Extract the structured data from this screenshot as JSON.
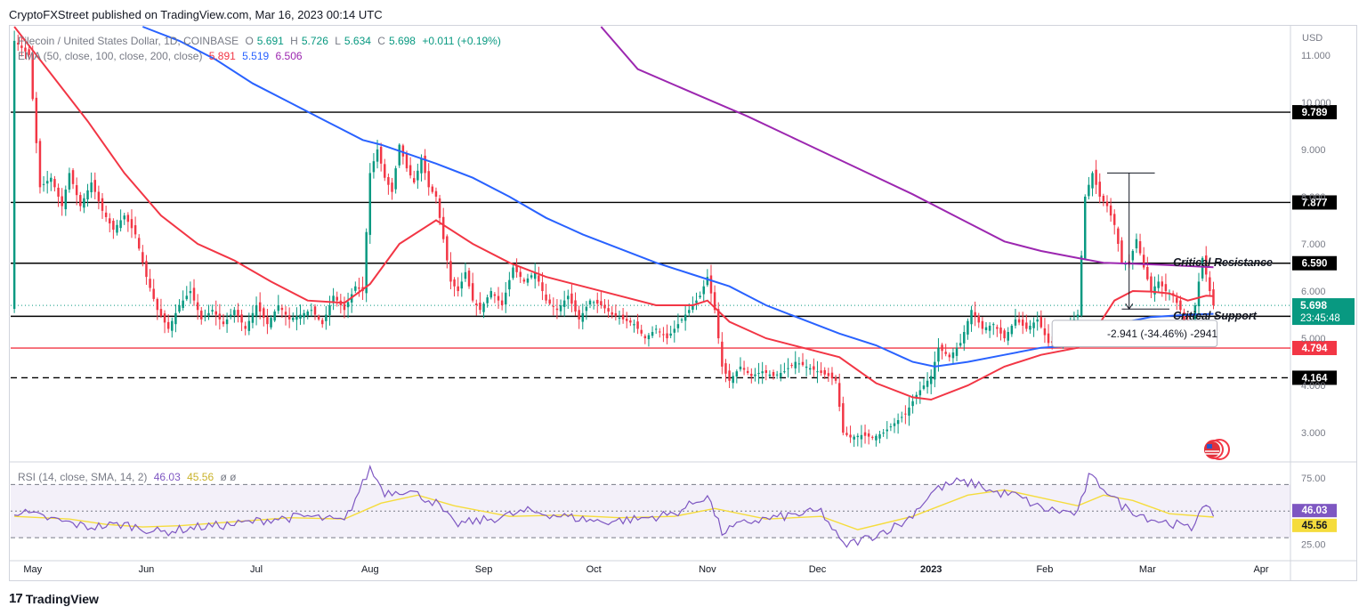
{
  "header": {
    "publisher": "CryptoFXStreet published on TradingView.com, Mar 16, 2023 00:14 UTC"
  },
  "legend": {
    "symbol": "Filecoin / United States Dollar, 1D, COINBASE",
    "o_label": "O",
    "o": "5.691",
    "h_label": "H",
    "h": "5.726",
    "l_label": "L",
    "l": "5.634",
    "c_label": "C",
    "c": "5.698",
    "change": "+0.011 (+0.19%)",
    "ema_label": "EMA (50, close, 100, close, 200, close)",
    "ema50": "5.891",
    "ema100": "5.519",
    "ema200": "6.506"
  },
  "rsi_legend": {
    "label": "RSI (14, close, SMA, 14, 2)",
    "rsi": "46.03",
    "sma": "45.56",
    "extra": "ø ø"
  },
  "footer": {
    "brand": "TradingView"
  },
  "colors": {
    "ema50": "#f23645",
    "ema100": "#2962ff",
    "ema200": "#9c27b0",
    "up": "#089981",
    "down": "#f23645",
    "rsi": "#7e57c2",
    "rsi_sma": "#f5dc3c"
  },
  "chart_data": {
    "type": "candlestick",
    "currency_label": "USD",
    "y_ticks": [
      "11.000",
      "10.000",
      "9.000",
      "8.000",
      "7.000",
      "6.000",
      "5.000",
      "4.000",
      "3.000"
    ],
    "y_tick_values": [
      11,
      10,
      9,
      8,
      7,
      6,
      5,
      4,
      3
    ],
    "ylim": [
      2.4,
      11.6
    ],
    "x_ticks": [
      {
        "label": "May",
        "t": 0.0
      },
      {
        "label": "Jun",
        "t": 31
      },
      {
        "label": "Jul",
        "t": 61
      },
      {
        "label": "Aug",
        "t": 92
      },
      {
        "label": "Sep",
        "t": 123
      },
      {
        "label": "Oct",
        "t": 153
      },
      {
        "label": "Nov",
        "t": 184
      },
      {
        "label": "Dec",
        "t": 214
      },
      {
        "label": "2023",
        "t": 245,
        "bold": true
      },
      {
        "label": "Feb",
        "t": 276
      },
      {
        "label": "Mar",
        "t": 304
      },
      {
        "label": "Apr",
        "t": 335
      }
    ],
    "horizontal_levels": [
      {
        "value": 9.789,
        "label": "9.789",
        "style": "solid",
        "color": "#000000"
      },
      {
        "value": 7.877,
        "label": "7.877",
        "style": "solid",
        "color": "#000000"
      },
      {
        "value": 6.59,
        "label": "6.590",
        "style": "solid",
        "color": "#000000"
      },
      {
        "value": 5.466,
        "label": "5.466",
        "style": "solid",
        "color": "#000000"
      },
      {
        "value": 4.794,
        "label": "4.794",
        "style": "solid",
        "color": "#f23645"
      },
      {
        "value": 4.164,
        "label": "4.164",
        "style": "dashed",
        "color": "#000000"
      }
    ],
    "current_price": {
      "value": 5.698,
      "label": "5.698",
      "countdown": "23:45:48"
    },
    "annotations": [
      {
        "text": "Critical Resistance",
        "t": 311,
        "y": 6.6
      },
      {
        "text": "Critical Support",
        "t": 311,
        "y": 5.47
      },
      {
        "text": "-2.941 (-34.46%) -2941",
        "t": 293,
        "y": 5.1
      }
    ],
    "price_path": [
      [
        -5,
        11.3
      ],
      [
        -1,
        11.0
      ],
      [
        2,
        8.2
      ],
      [
        5,
        8.4
      ],
      [
        8,
        7.8
      ],
      [
        10,
        8.5
      ],
      [
        13,
        7.8
      ],
      [
        16,
        8.3
      ],
      [
        19,
        7.7
      ],
      [
        22,
        7.3
      ],
      [
        25,
        7.6
      ],
      [
        28,
        7.2
      ],
      [
        31,
        6.3
      ],
      [
        34,
        5.6
      ],
      [
        37,
        5.2
      ],
      [
        40,
        5.7
      ],
      [
        43,
        6.0
      ],
      [
        46,
        5.4
      ],
      [
        49,
        5.6
      ],
      [
        52,
        5.3
      ],
      [
        55,
        5.6
      ],
      [
        58,
        5.2
      ],
      [
        61,
        5.7
      ],
      [
        64,
        5.3
      ],
      [
        67,
        5.7
      ],
      [
        70,
        5.4
      ],
      [
        73,
        5.5
      ],
      [
        76,
        5.6
      ],
      [
        79,
        5.3
      ],
      [
        82,
        5.9
      ],
      [
        85,
        5.6
      ],
      [
        88,
        6.1
      ],
      [
        90,
        6.0
      ],
      [
        92,
        8.5
      ],
      [
        94,
        9.0
      ],
      [
        96,
        8.4
      ],
      [
        98,
        8.1
      ],
      [
        100,
        9.1
      ],
      [
        102,
        8.6
      ],
      [
        104,
        8.3
      ],
      [
        106,
        8.8
      ],
      [
        108,
        8.2
      ],
      [
        110,
        8.0
      ],
      [
        112,
        7.1
      ],
      [
        114,
        6.2
      ],
      [
        116,
        6.0
      ],
      [
        118,
        6.4
      ],
      [
        120,
        5.8
      ],
      [
        122,
        5.6
      ],
      [
        125,
        6.0
      ],
      [
        128,
        5.7
      ],
      [
        131,
        6.5
      ],
      [
        134,
        6.2
      ],
      [
        137,
        6.4
      ],
      [
        140,
        5.8
      ],
      [
        143,
        5.6
      ],
      [
        146,
        5.9
      ],
      [
        149,
        5.4
      ],
      [
        152,
        5.8
      ],
      [
        155,
        5.7
      ],
      [
        158,
        5.5
      ],
      [
        161,
        5.4
      ],
      [
        164,
        5.3
      ],
      [
        167,
        5.0
      ],
      [
        170,
        5.2
      ],
      [
        173,
        5.0
      ],
      [
        176,
        5.3
      ],
      [
        179,
        5.6
      ],
      [
        182,
        5.9
      ],
      [
        184,
        6.3
      ],
      [
        186,
        5.6
      ],
      [
        188,
        4.4
      ],
      [
        190,
        4.1
      ],
      [
        193,
        4.4
      ],
      [
        196,
        4.2
      ],
      [
        199,
        4.3
      ],
      [
        202,
        4.2
      ],
      [
        205,
        4.3
      ],
      [
        208,
        4.5
      ],
      [
        211,
        4.4
      ],
      [
        214,
        4.3
      ],
      [
        217,
        4.2
      ],
      [
        219,
        4.1
      ],
      [
        221,
        3.0
      ],
      [
        223,
        2.9
      ],
      [
        226,
        2.95
      ],
      [
        229,
        2.9
      ],
      [
        232,
        3.0
      ],
      [
        235,
        3.2
      ],
      [
        238,
        3.4
      ],
      [
        241,
        3.8
      ],
      [
        243,
        4.0
      ],
      [
        245,
        4.2
      ],
      [
        247,
        4.8
      ],
      [
        250,
        4.6
      ],
      [
        253,
        4.9
      ],
      [
        256,
        5.6
      ],
      [
        259,
        5.2
      ],
      [
        262,
        5.3
      ],
      [
        265,
        5.0
      ],
      [
        268,
        5.4
      ],
      [
        271,
        5.2
      ],
      [
        274,
        5.4
      ],
      [
        277,
        4.9
      ],
      [
        280,
        4.9
      ],
      [
        283,
        5.3
      ],
      [
        285,
        5.5
      ],
      [
        287,
        8.0
      ],
      [
        289,
        8.5
      ],
      [
        291,
        8.0
      ],
      [
        293,
        7.8
      ],
      [
        295,
        7.4
      ],
      [
        297,
        6.6
      ],
      [
        299,
        6.6
      ],
      [
        301,
        7.1
      ],
      [
        303,
        6.5
      ],
      [
        305,
        6.0
      ],
      [
        307,
        6.2
      ],
      [
        309,
        6.0
      ],
      [
        311,
        5.9
      ],
      [
        313,
        5.6
      ],
      [
        315,
        5.0
      ],
      [
        317,
        5.7
      ],
      [
        319,
        6.7
      ],
      [
        321,
        6.0
      ],
      [
        322,
        5.698
      ]
    ],
    "series": [
      {
        "name": "EMA 50",
        "values": [
          [
            -5,
            11.6
          ],
          [
            5,
            10.6
          ],
          [
            15,
            9.6
          ],
          [
            25,
            8.5
          ],
          [
            35,
            7.6
          ],
          [
            45,
            7.0
          ],
          [
            55,
            6.65
          ],
          [
            65,
            6.2
          ],
          [
            75,
            5.8
          ],
          [
            85,
            5.75
          ],
          [
            92,
            6.15
          ],
          [
            100,
            7.0
          ],
          [
            110,
            7.5
          ],
          [
            120,
            7.0
          ],
          [
            130,
            6.6
          ],
          [
            140,
            6.3
          ],
          [
            150,
            6.1
          ],
          [
            160,
            5.9
          ],
          [
            170,
            5.7
          ],
          [
            180,
            5.7
          ],
          [
            184,
            5.8
          ],
          [
            190,
            5.35
          ],
          [
            200,
            5.0
          ],
          [
            210,
            4.8
          ],
          [
            220,
            4.6
          ],
          [
            230,
            4.05
          ],
          [
            240,
            3.75
          ],
          [
            245,
            3.7
          ],
          [
            255,
            4.0
          ],
          [
            265,
            4.4
          ],
          [
            275,
            4.65
          ],
          [
            285,
            4.8
          ],
          [
            290,
            5.2
          ],
          [
            295,
            5.8
          ],
          [
            300,
            6.0
          ],
          [
            305,
            5.99
          ],
          [
            310,
            5.95
          ],
          [
            315,
            5.8
          ],
          [
            320,
            5.9
          ],
          [
            322,
            5.891
          ]
        ]
      },
      {
        "name": "EMA 100",
        "values": [
          [
            30,
            11.6
          ],
          [
            40,
            11.3
          ],
          [
            50,
            10.9
          ],
          [
            60,
            10.4
          ],
          [
            70,
            10.0
          ],
          [
            80,
            9.6
          ],
          [
            90,
            9.2
          ],
          [
            95,
            9.1
          ],
          [
            110,
            8.7
          ],
          [
            120,
            8.4
          ],
          [
            130,
            8.0
          ],
          [
            140,
            7.55
          ],
          [
            150,
            7.2
          ],
          [
            160,
            6.9
          ],
          [
            170,
            6.6
          ],
          [
            180,
            6.35
          ],
          [
            190,
            6.1
          ],
          [
            200,
            5.7
          ],
          [
            210,
            5.4
          ],
          [
            220,
            5.1
          ],
          [
            230,
            4.85
          ],
          [
            240,
            4.5
          ],
          [
            246,
            4.4
          ],
          [
            255,
            4.5
          ],
          [
            265,
            4.65
          ],
          [
            275,
            4.8
          ],
          [
            285,
            4.85
          ],
          [
            290,
            5.1
          ],
          [
            295,
            5.3
          ],
          [
            305,
            5.45
          ],
          [
            315,
            5.5
          ],
          [
            322,
            5.519
          ]
        ]
      },
      {
        "name": "EMA 200",
        "values": [
          [
            155,
            11.6
          ],
          [
            165,
            10.7
          ],
          [
            180,
            10.2
          ],
          [
            195,
            9.7
          ],
          [
            210,
            9.15
          ],
          [
            225,
            8.6
          ],
          [
            240,
            8.05
          ],
          [
            255,
            7.45
          ],
          [
            265,
            7.05
          ],
          [
            275,
            6.85
          ],
          [
            285,
            6.7
          ],
          [
            292,
            6.6
          ],
          [
            300,
            6.58
          ],
          [
            310,
            6.55
          ],
          [
            322,
            6.506
          ]
        ]
      }
    ],
    "rsi": {
      "ticks": [
        "75.00",
        "25.00"
      ],
      "tick_values": [
        75,
        25
      ],
      "levels": [
        70,
        50,
        30
      ],
      "ylim": [
        18,
        85
      ],
      "current": "46.03",
      "sma_current": "45.56",
      "values": [
        [
          -5,
          50
        ],
        [
          5,
          44
        ],
        [
          15,
          38
        ],
        [
          25,
          40
        ],
        [
          35,
          34
        ],
        [
          45,
          38
        ],
        [
          55,
          40
        ],
        [
          65,
          44
        ],
        [
          75,
          46
        ],
        [
          85,
          42
        ],
        [
          92,
          82
        ],
        [
          96,
          64
        ],
        [
          102,
          66
        ],
        [
          110,
          56
        ],
        [
          115,
          40
        ],
        [
          125,
          44
        ],
        [
          135,
          50
        ],
        [
          145,
          46
        ],
        [
          155,
          42
        ],
        [
          165,
          44
        ],
        [
          175,
          48
        ],
        [
          184,
          62
        ],
        [
          188,
          34
        ],
        [
          195,
          42
        ],
        [
          205,
          46
        ],
        [
          215,
          50
        ],
        [
          221,
          24
        ],
        [
          228,
          30
        ],
        [
          238,
          42
        ],
        [
          246,
          66
        ],
        [
          252,
          72
        ],
        [
          258,
          70
        ],
        [
          262,
          64
        ],
        [
          268,
          62
        ],
        [
          275,
          52
        ],
        [
          285,
          48
        ],
        [
          288,
          76
        ],
        [
          292,
          68
        ],
        [
          297,
          54
        ],
        [
          305,
          44
        ],
        [
          312,
          40
        ],
        [
          316,
          36
        ],
        [
          319,
          56
        ],
        [
          322,
          46
        ]
      ],
      "sma_values": [
        [
          -5,
          46
        ],
        [
          10,
          44
        ],
        [
          20,
          40
        ],
        [
          30,
          38
        ],
        [
          40,
          39
        ],
        [
          55,
          42
        ],
        [
          70,
          45
        ],
        [
          85,
          44
        ],
        [
          95,
          56
        ],
        [
          105,
          62
        ],
        [
          115,
          54
        ],
        [
          130,
          46
        ],
        [
          145,
          47
        ],
        [
          160,
          45
        ],
        [
          175,
          46
        ],
        [
          186,
          52
        ],
        [
          200,
          44
        ],
        [
          215,
          46
        ],
        [
          225,
          36
        ],
        [
          240,
          46
        ],
        [
          255,
          62
        ],
        [
          265,
          66
        ],
        [
          275,
          60
        ],
        [
          285,
          54
        ],
        [
          292,
          62
        ],
        [
          300,
          58
        ],
        [
          310,
          48
        ],
        [
          322,
          45.5
        ]
      ]
    }
  }
}
